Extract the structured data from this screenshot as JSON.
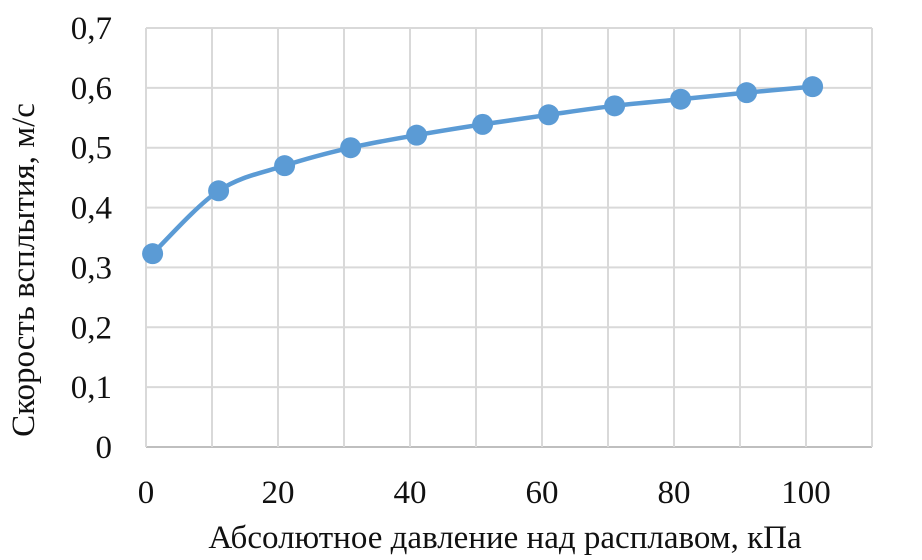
{
  "chart_data": {
    "type": "line",
    "title": "",
    "xlabel": "Абсолютное давление над расплавом, кПа",
    "ylabel": "Скорость всплытия, м/с",
    "xlim": [
      0,
      110
    ],
    "ylim": [
      0,
      0.7
    ],
    "xticks": [
      0,
      20,
      40,
      60,
      80,
      100
    ],
    "yticks": [
      0,
      0.1,
      0.2,
      0.3,
      0.4,
      0.5,
      0.6,
      0.7
    ],
    "xtick_labels": [
      "0",
      "20",
      "40",
      "60",
      "80",
      "100"
    ],
    "ytick_labels": [
      "0",
      "0,1",
      "0,2",
      "0,3",
      "0,4",
      "0,5",
      "0,6",
      "0,7"
    ],
    "grid": true,
    "legend": "none",
    "series": [
      {
        "color": "#5b9bd5",
        "smooth": true,
        "markers": "circle",
        "x": [
          1,
          11,
          21,
          31,
          41,
          51,
          61,
          71,
          81,
          91,
          101
        ],
        "y": [
          0.323,
          0.428,
          0.47,
          0.5,
          0.521,
          0.539,
          0.555,
          0.57,
          0.581,
          0.592,
          0.602
        ]
      }
    ]
  }
}
